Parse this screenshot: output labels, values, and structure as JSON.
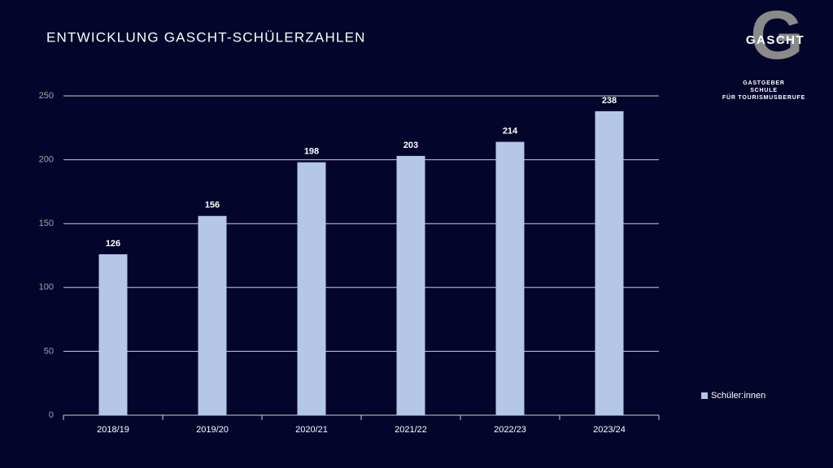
{
  "logo": {
    "letter": "G",
    "name": "GASCHT",
    "lines": [
      "GASTGEBER",
      "SCHULE",
      "FÜR TOURISMUSBERUFE"
    ]
  },
  "chart_data": {
    "type": "bar",
    "title": "ENTWICKLUNG GASCHT-SCHÜLERZAHLEN",
    "categories": [
      "2018/19",
      "2019/20",
      "2020/21",
      "2021/22",
      "2022/23",
      "2023/24"
    ],
    "series": [
      {
        "name": "Schüler:innen",
        "color": "#b4c7e7",
        "values": [
          126,
          156,
          198,
          203,
          214,
          238
        ]
      }
    ],
    "ylim": [
      0,
      250
    ],
    "yticks": [
      0,
      50,
      100,
      150,
      200,
      250
    ],
    "grid": true,
    "legend": "right"
  }
}
